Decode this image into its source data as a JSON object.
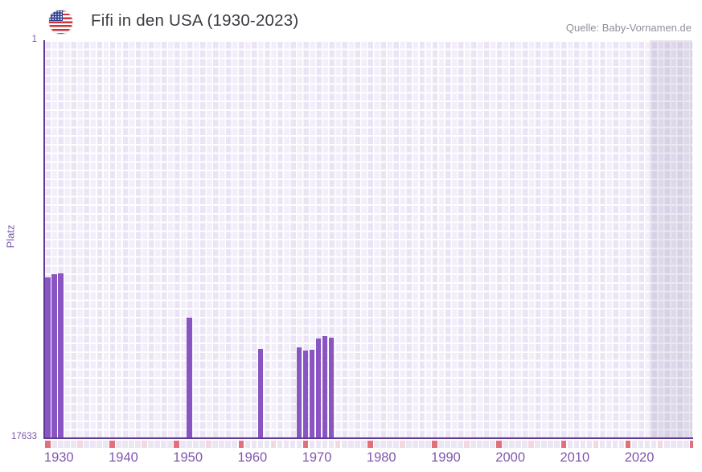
{
  "header": {
    "title": "Fifi in den USA (1930-2023)",
    "source": "Quelle: Baby-Vornamen.de"
  },
  "chart_data": {
    "type": "bar",
    "title": "Fifi in den USA (1930-2023)",
    "xlabel": "",
    "ylabel": "Platz",
    "y_axis": {
      "min": 1,
      "max": 17633,
      "inverted": true,
      "tick_labels": [
        "1",
        "17633"
      ]
    },
    "x_axis": {
      "plot_start": 1930,
      "plot_end": 2030,
      "data_start": 1930,
      "data_end": 2023,
      "tick_step": 10,
      "tick_labels": [
        "1930",
        "1940",
        "1950",
        "1960",
        "1970",
        "1980",
        "1990",
        "2000",
        "2010",
        "2020"
      ],
      "half_decade_marks": true
    },
    "grid": true,
    "legend": null,
    "out_of_range_shade": {
      "from": 2024,
      "to": 2030
    },
    "series": [
      {
        "name": "Fifi",
        "unit": "Platz (Rang)",
        "points": [
          {
            "year": 1930,
            "rank": 10530
          },
          {
            "year": 1931,
            "rank": 10390
          },
          {
            "year": 1932,
            "rank": 10350
          },
          {
            "year": 1952,
            "rank": 12300
          },
          {
            "year": 1963,
            "rank": 13720
          },
          {
            "year": 1969,
            "rank": 13620
          },
          {
            "year": 1970,
            "rank": 13780
          },
          {
            "year": 1971,
            "rank": 13740
          },
          {
            "year": 1972,
            "rank": 13230
          },
          {
            "year": 1973,
            "rank": 13120
          },
          {
            "year": 1974,
            "rank": 13210
          }
        ]
      }
    ]
  },
  "colors": {
    "bar": "#8955c3",
    "axis_line": "#5e3a96",
    "axis_text": "#7e57ad",
    "title_text": "#3b3b43",
    "source_text": "#90909a",
    "plot_cell_light": "#f2eefa",
    "plot_cell_dark": "#eae4f5",
    "strip_cell": "#ebe6f4",
    "strip_decade": "#e2707a",
    "strip_half_decade": "#f3d8e1",
    "shade_overlay": "rgba(108,92,140,0.14)"
  }
}
